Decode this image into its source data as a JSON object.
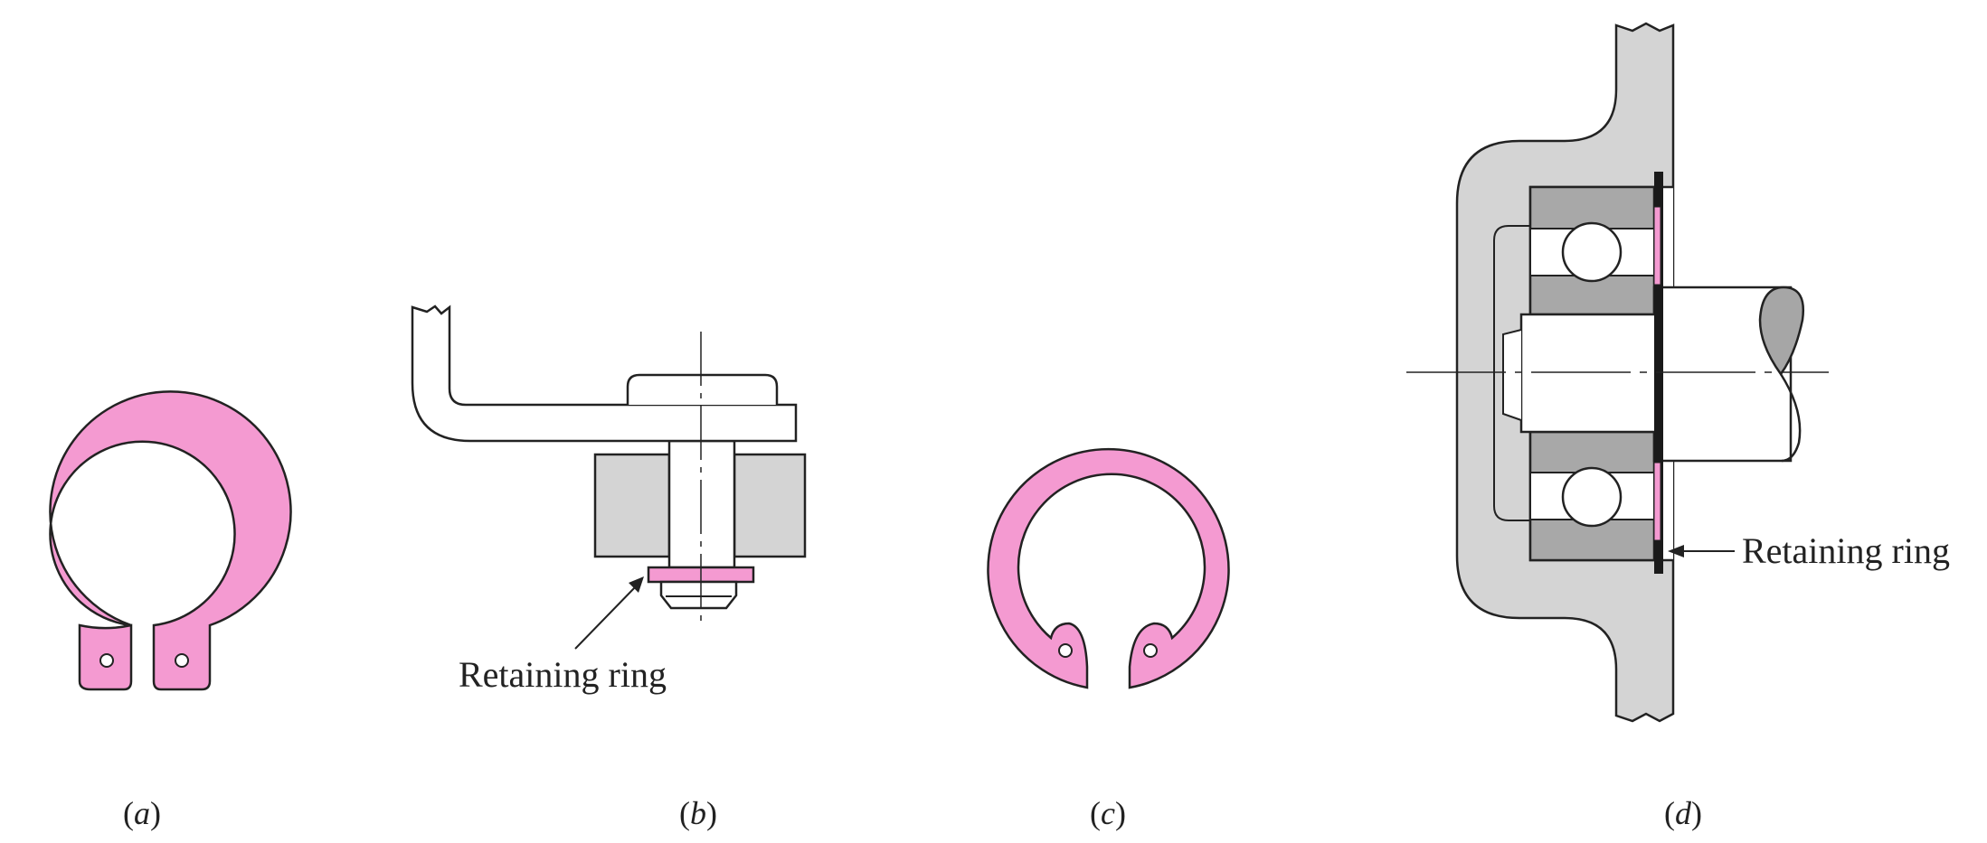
{
  "colors": {
    "ring": "#f49ad1",
    "housing": "#d4d4d4",
    "bearing_race": "#a8a8a8",
    "shaft_end": "#a6a6a6",
    "stroke": "#222222",
    "dark_ring": "#1a1a1a"
  },
  "labels": {
    "retaining_ring_b": "Retaining ring",
    "retaining_ring_d": "Retaining ring"
  },
  "captions": {
    "a": "a",
    "b": "b",
    "c": "c",
    "d": "d"
  }
}
